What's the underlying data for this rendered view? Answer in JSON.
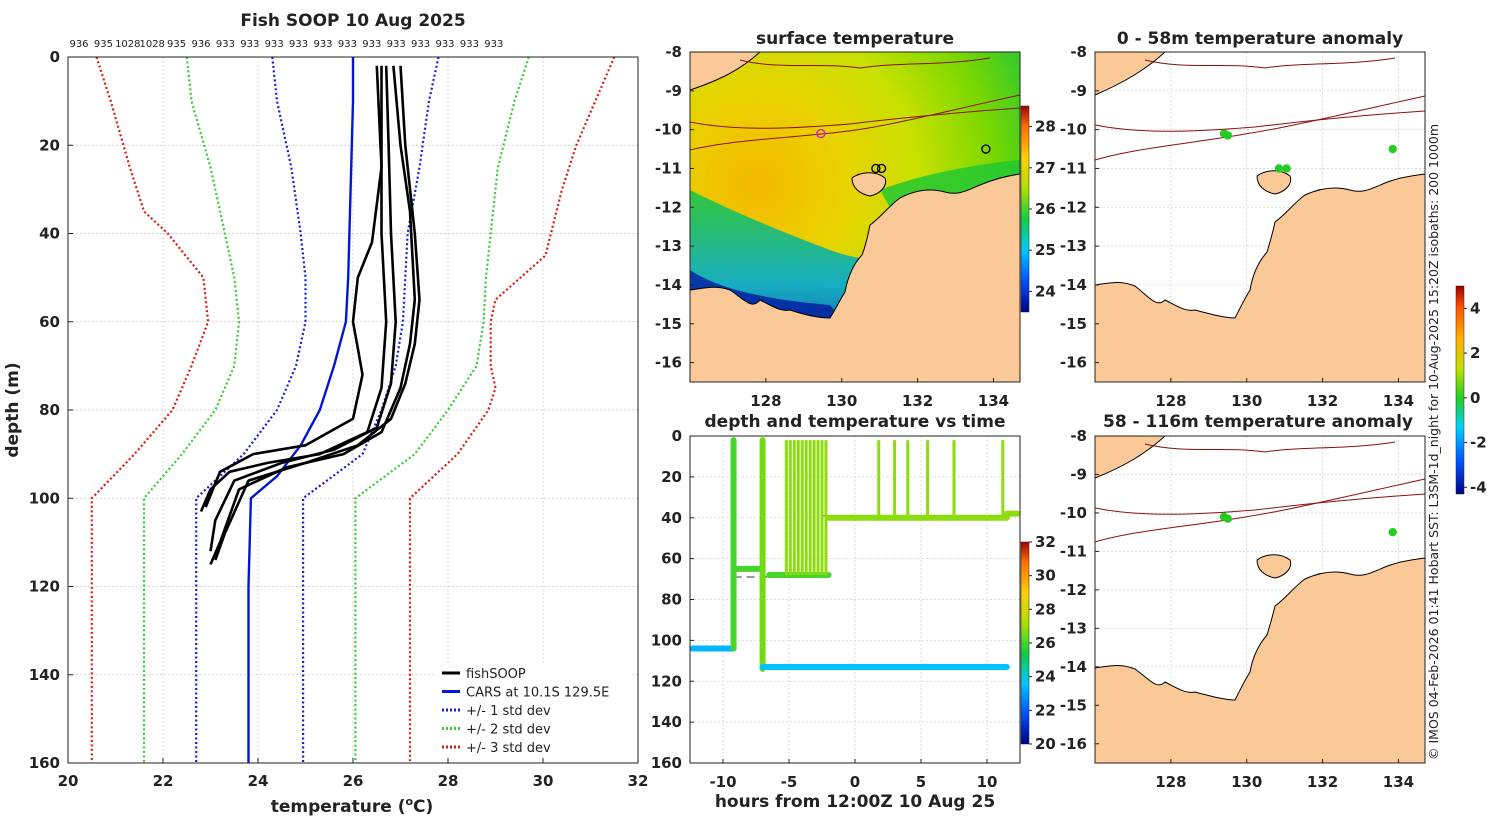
{
  "colors": {
    "fishsoop": "#000000",
    "cars": "#0018d6",
    "std1": "#1a1ad8",
    "std2": "#33cc33",
    "std3": "#dd1a0e",
    "land": "#fbc997",
    "contour": "#8b1010",
    "marker_green": "#22cc22",
    "marker_magenta": "#cc22cc"
  },
  "credit": "© IMOS 04-Feb-2026 01:41 Hobart SST: L3SM-1d_night for 10-Aug-2025 15:20Z isobaths: 200  1000m",
  "chart_data": [
    {
      "id": "profile",
      "type": "line",
      "title": "Fish SOOP 10 Aug 2025",
      "xlabel": "temperature (°C)",
      "xlabel_main": "temperature (",
      "xlabel_sup": "o",
      "xlabel_end": "C)",
      "ylabel": "depth (m)",
      "xlim": [
        20,
        32
      ],
      "ylim": [
        0,
        160
      ],
      "y_reversed": true,
      "grid": true,
      "x_ticks": [
        "20",
        "22",
        "24",
        "26",
        "28",
        "30",
        "32"
      ],
      "y_ticks": [
        "0",
        "20",
        "40",
        "60",
        "80",
        "100",
        "120",
        "140",
        "160"
      ],
      "top_labels": [
        "936",
        "935",
        "1028",
        "1028",
        "935",
        "936",
        "933",
        "933",
        "933",
        "933",
        "933",
        "933",
        "933",
        "933",
        "933",
        "933",
        "933",
        "933"
      ],
      "legend": [
        {
          "label": "fishSOOP",
          "style": "solid",
          "color_key": "fishsoop"
        },
        {
          "label": "CARS at 10.1S 129.5E",
          "style": "solid",
          "color_key": "cars"
        },
        {
          "label": "+/- 1 std dev",
          "style": "dotted",
          "color_key": "std1"
        },
        {
          "label": "+/- 2 std dev",
          "style": "dotted",
          "color_key": "std2"
        },
        {
          "label": "+/- 3 std dev",
          "style": "dotted",
          "color_key": "std3"
        }
      ],
      "legend_position": "bottom-right",
      "series": [
        {
          "name": "CARS at 10.1S 129.5E",
          "color_key": "cars",
          "style": "solid",
          "points": [
            [
              26.0,
              0
            ],
            [
              26.0,
              10
            ],
            [
              25.95,
              30
            ],
            [
              25.9,
              50
            ],
            [
              25.85,
              60
            ],
            [
              25.6,
              70
            ],
            [
              25.3,
              80
            ],
            [
              24.9,
              88
            ],
            [
              24.4,
              95
            ],
            [
              23.85,
              100
            ],
            [
              23.8,
              120
            ],
            [
              23.8,
              160
            ]
          ]
        },
        {
          "name": "-1 std",
          "color_key": "std1",
          "style": "dotted",
          "points": [
            [
              24.3,
              0
            ],
            [
              24.4,
              10
            ],
            [
              24.7,
              25
            ],
            [
              24.9,
              40
            ],
            [
              25.0,
              50
            ],
            [
              25.0,
              60
            ],
            [
              24.8,
              70
            ],
            [
              24.4,
              80
            ],
            [
              23.7,
              90
            ],
            [
              22.7,
              100
            ],
            [
              22.7,
              160
            ]
          ]
        },
        {
          "name": "+1 std",
          "color_key": "std1",
          "style": "dotted",
          "points": [
            [
              27.8,
              0
            ],
            [
              27.6,
              10
            ],
            [
              27.4,
              25
            ],
            [
              27.15,
              40
            ],
            [
              27.1,
              50
            ],
            [
              27.05,
              60
            ],
            [
              26.9,
              70
            ],
            [
              26.6,
              80
            ],
            [
              26.2,
              90
            ],
            [
              24.95,
              100
            ],
            [
              24.95,
              160
            ]
          ]
        },
        {
          "name": "-2 std",
          "color_key": "std2",
          "style": "dotted",
          "points": [
            [
              22.5,
              0
            ],
            [
              22.6,
              10
            ],
            [
              23.0,
              25
            ],
            [
              23.3,
              40
            ],
            [
              23.5,
              50
            ],
            [
              23.6,
              60
            ],
            [
              23.5,
              70
            ],
            [
              23.1,
              80
            ],
            [
              22.4,
              90
            ],
            [
              21.6,
              100
            ],
            [
              21.6,
              160
            ]
          ]
        },
        {
          "name": "+2 std",
          "color_key": "std2",
          "style": "dotted",
          "points": [
            [
              29.7,
              0
            ],
            [
              29.4,
              10
            ],
            [
              29.05,
              25
            ],
            [
              28.9,
              40
            ],
            [
              28.8,
              50
            ],
            [
              28.75,
              60
            ],
            [
              28.6,
              70
            ],
            [
              28.0,
              80
            ],
            [
              27.3,
              90
            ],
            [
              26.05,
              100
            ],
            [
              26.05,
              160
            ]
          ]
        },
        {
          "name": "-3 std",
          "color_key": "std3",
          "style": "dotted",
          "points": [
            [
              20.6,
              0
            ],
            [
              20.9,
              10
            ],
            [
              21.3,
              25
            ],
            [
              21.6,
              35
            ],
            [
              22.1,
              40
            ],
            [
              22.85,
              50
            ],
            [
              22.95,
              60
            ],
            [
              22.6,
              70
            ],
            [
              22.2,
              80
            ],
            [
              21.4,
              90
            ],
            [
              20.5,
              100
            ],
            [
              20.5,
              160
            ]
          ]
        },
        {
          "name": "+3 std",
          "color_key": "std3",
          "style": "dotted",
          "points": [
            [
              31.5,
              0
            ],
            [
              31.1,
              10
            ],
            [
              30.7,
              20
            ],
            [
              30.4,
              30
            ],
            [
              30.05,
              45
            ],
            [
              29.0,
              55
            ],
            [
              28.9,
              60
            ],
            [
              28.9,
              70
            ],
            [
              29.0,
              75
            ],
            [
              28.85,
              80
            ],
            [
              28.2,
              90
            ],
            [
              27.2,
              100
            ],
            [
              27.2,
              160
            ]
          ]
        },
        {
          "name": "fishSOOP",
          "color_key": "fishsoop",
          "style": "solid",
          "points": [
            [
              26.6,
              2
            ],
            [
              26.6,
              20
            ],
            [
              26.6,
              40
            ],
            [
              26.7,
              60
            ],
            [
              26.6,
              75
            ],
            [
              26.3,
              85
            ],
            [
              25.3,
              90
            ],
            [
              24.2,
              92
            ],
            [
              23.4,
              94
            ],
            [
              23.0,
              98
            ],
            [
              22.8,
              103
            ]
          ]
        },
        {
          "name": "fishSOOP cast 2",
          "color_key": "fishsoop",
          "style": "solid",
          "points": [
            [
              26.7,
              2
            ],
            [
              26.75,
              20
            ],
            [
              26.8,
              40
            ],
            [
              26.9,
              60
            ],
            [
              26.8,
              74
            ],
            [
              26.5,
              84
            ],
            [
              25.6,
              89
            ],
            [
              24.5,
              92
            ],
            [
              23.5,
              96
            ],
            [
              23.1,
              105
            ],
            [
              23.0,
              112
            ]
          ]
        },
        {
          "name": "fishSOOP cast 3",
          "color_key": "fishsoop",
          "style": "solid",
          "points": [
            [
              26.85,
              2
            ],
            [
              27.0,
              20
            ],
            [
              27.2,
              35
            ],
            [
              27.3,
              55
            ],
            [
              27.2,
              65
            ],
            [
              27.0,
              75
            ],
            [
              26.6,
              85
            ],
            [
              25.8,
              90
            ],
            [
              24.6,
              93
            ],
            [
              23.6,
              98
            ],
            [
              23.2,
              110
            ],
            [
              23.0,
              115
            ]
          ]
        },
        {
          "name": "fishSOOP cast 4",
          "color_key": "fishsoop",
          "style": "solid",
          "points": [
            [
              27.0,
              2
            ],
            [
              27.1,
              20
            ],
            [
              27.3,
              40
            ],
            [
              27.4,
              55
            ],
            [
              27.3,
              65
            ],
            [
              27.1,
              74
            ],
            [
              26.8,
              82
            ],
            [
              26.1,
              88
            ],
            [
              25.0,
              92
            ],
            [
              23.8,
              96
            ],
            [
              23.3,
              108
            ],
            [
              23.1,
              114
            ]
          ]
        },
        {
          "name": "fishSOOP cast 5",
          "color_key": "fishsoop",
          "style": "solid",
          "points": [
            [
              26.5,
              2
            ],
            [
              26.6,
              25
            ],
            [
              26.4,
              42
            ],
            [
              26.1,
              50
            ],
            [
              26.0,
              60
            ],
            [
              26.1,
              66
            ],
            [
              26.2,
              72
            ],
            [
              26.0,
              82
            ],
            [
              25.0,
              88
            ],
            [
              23.9,
              90
            ],
            [
              23.2,
              94
            ],
            [
              22.9,
              102
            ]
          ]
        }
      ]
    },
    {
      "id": "sst",
      "type": "heatmap",
      "title": "surface temperature",
      "xlim": [
        126,
        134.7
      ],
      "ylim": [
        -16.5,
        -8
      ],
      "x_ticks": [
        "128",
        "130",
        "132",
        "134"
      ],
      "y_ticks": [
        "-8",
        "-9",
        "-10",
        "-11",
        "-12",
        "-13",
        "-14",
        "-15",
        "-16"
      ],
      "colorbar": {
        "range": [
          23.5,
          28.5
        ],
        "ticks": [
          "24",
          "25",
          "26",
          "27",
          "28"
        ]
      },
      "markers": [
        {
          "lon": 129.45,
          "lat": -10.1,
          "color_key": "marker_magenta"
        },
        {
          "lon": 130.9,
          "lat": -11.0,
          "color_key": "fishsoop"
        },
        {
          "lon": 131.05,
          "lat": -11.0,
          "color_key": "fishsoop"
        },
        {
          "lon": 133.8,
          "lat": -10.5,
          "color_key": "fishsoop"
        }
      ]
    },
    {
      "id": "anom1",
      "type": "scatter",
      "title": "0 - 58m temperature anomaly",
      "xlim": [
        126,
        134.7
      ],
      "ylim": [
        -16.5,
        -8
      ],
      "x_ticks": [
        "128",
        "130",
        "132",
        "134"
      ],
      "y_ticks": [
        "-8",
        "-9",
        "-10",
        "-11",
        "-12",
        "-13",
        "-14",
        "-15",
        "-16"
      ],
      "markers": [
        {
          "lon": 129.4,
          "lat": -10.1
        },
        {
          "lon": 129.5,
          "lat": -10.15
        },
        {
          "lon": 130.85,
          "lat": -11.0
        },
        {
          "lon": 131.05,
          "lat": -11.0
        },
        {
          "lon": 133.85,
          "lat": -10.5
        }
      ]
    },
    {
      "id": "anom2",
      "type": "scatter",
      "title": "58 - 116m temperature anomaly",
      "xlim": [
        126,
        134.7
      ],
      "ylim": [
        -16.5,
        -8
      ],
      "x_ticks": [
        "128",
        "130",
        "132",
        "134"
      ],
      "y_ticks": [
        "-8",
        "-9",
        "-10",
        "-11",
        "-12",
        "-13",
        "-14",
        "-15",
        "-16"
      ],
      "colorbar": {
        "range": [
          -4.3,
          5
        ],
        "ticks": [
          "4",
          "2",
          "0",
          "-2",
          "-4"
        ]
      },
      "markers": [
        {
          "lon": 129.4,
          "lat": -10.1
        },
        {
          "lon": 129.5,
          "lat": -10.15
        },
        {
          "lon": 133.85,
          "lat": -10.5
        }
      ]
    },
    {
      "id": "timeseries",
      "type": "scatter",
      "title": "depth and temperature vs time",
      "xlabel": "hours from 12:00Z 10 Aug 25",
      "xlim": [
        -12.5,
        12.5
      ],
      "ylim": [
        0,
        160
      ],
      "y_reversed": true,
      "x_ticks": [
        "-10",
        "-5",
        "0",
        "5",
        "10"
      ],
      "y_ticks": [
        "0",
        "20",
        "40",
        "60",
        "80",
        "100",
        "120",
        "140",
        "160"
      ],
      "colorbar": {
        "range": [
          20,
          32
        ],
        "ticks": [
          "20",
          "22",
          "24",
          "26",
          "28",
          "30",
          "32"
        ]
      },
      "segments": [
        {
          "t": [
            -12.3,
            -9.2
          ],
          "depth": 104,
          "temp": 23.3
        },
        {
          "t": [
            -9.2,
            -9.2
          ],
          "depth": [
            2,
            104
          ],
          "temp": 26.0
        },
        {
          "t": [
            -9.2,
            -7.0
          ],
          "depth": 65,
          "temp": 26.0
        },
        {
          "t": [
            -7.0,
            -7.0
          ],
          "depth": [
            2,
            114
          ],
          "temp": 26.5
        },
        {
          "t": [
            -7.0,
            11.5
          ],
          "depth": 113,
          "temp": 23.5
        },
        {
          "t": [
            -6.5,
            -2.0
          ],
          "depth": 68,
          "temp": 26.0
        },
        {
          "t": [
            -2.0,
            2.0
          ],
          "depth": 40,
          "temp": 26.8
        },
        {
          "t": [
            2.0,
            11.5
          ],
          "depth": 40,
          "temp": 26.8
        },
        {
          "t": [
            11.5,
            12.3
          ],
          "depth": 38,
          "temp": 26.8
        }
      ]
    }
  ]
}
